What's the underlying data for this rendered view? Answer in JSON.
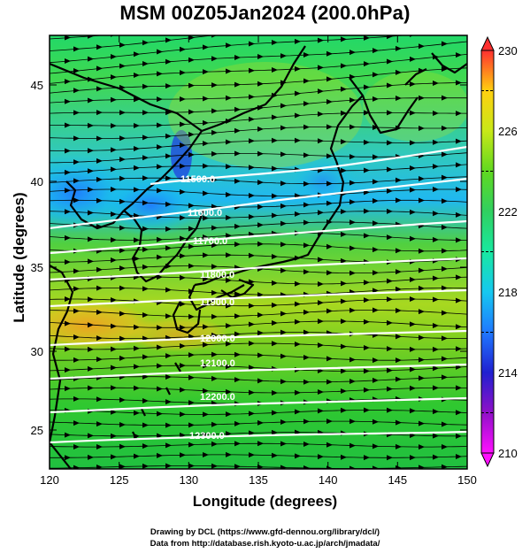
{
  "title": "MSM 00Z05Jan2024 (200.0hPa)",
  "axes": {
    "xlabel": "Longitude (degrees)",
    "ylabel": "Latitude  (degrees)",
    "xlim": [
      120,
      150
    ],
    "ylim": [
      22.4,
      47.6
    ],
    "xticks": [
      "120",
      "125",
      "130",
      "135",
      "140",
      "145",
      "150"
    ],
    "yticks": [
      "25",
      "30",
      "35",
      "40",
      "45"
    ]
  },
  "colorbar": {
    "range": [
      210,
      230
    ],
    "ticks": [
      "210",
      "214",
      "218",
      "222",
      "226",
      "230"
    ],
    "colors": [
      "#ff10ff",
      "#9010c8",
      "#2020d0",
      "#1f78ff",
      "#16c8f0",
      "#18e8a0",
      "#30d060",
      "#60d820",
      "#c8e818",
      "#ffd010",
      "#ff8020",
      "#ff3030"
    ]
  },
  "contour_labels": [
    "11500.0",
    "11600.0",
    "11700.0",
    "11800.0",
    "11900.0",
    "12000.0",
    "12100.0",
    "12200.0",
    "12300.0"
  ],
  "footer": {
    "line1": "Drawing by DCL (https://www.gfd-dennou.org/library/dcl/)",
    "line2": "Data from http://database.rish.kyoto-u.ac.jp/arch/jmadata/"
  }
}
